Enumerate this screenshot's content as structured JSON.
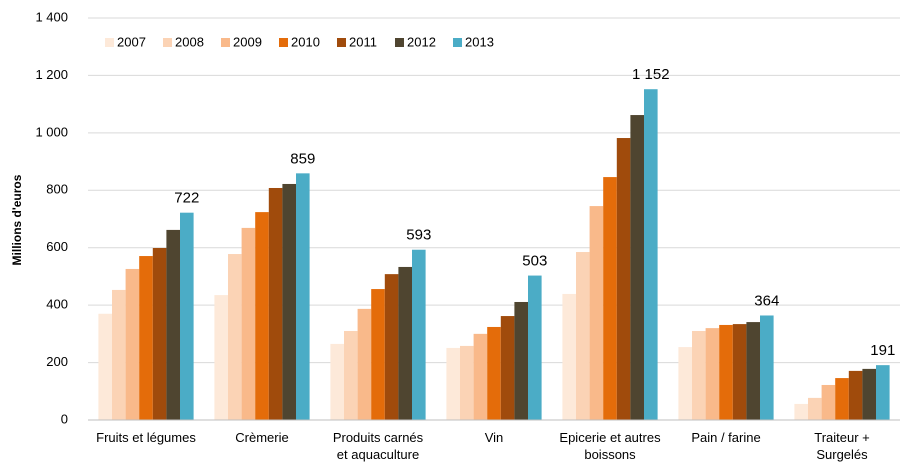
{
  "chart_data": {
    "type": "bar",
    "y_label": "Millions d'euros",
    "categories": [
      "Fruits et légumes",
      "Crèmerie",
      "Produits carnés\net aquaculture",
      "Vin",
      "Epicerie et autres\nboissons",
      "Pain / farine",
      "Traiteur +\nSurgelés"
    ],
    "series": [
      {
        "name": "2007",
        "color": "#fde9d9",
        "values": [
          370,
          435,
          265,
          251,
          439,
          254,
          56
        ]
      },
      {
        "name": "2008",
        "color": "#fbd3b5",
        "values": [
          453,
          578,
          310,
          258,
          585,
          310,
          77
        ]
      },
      {
        "name": "2009",
        "color": "#f9b98a",
        "values": [
          526,
          669,
          387,
          300,
          745,
          320,
          122
        ]
      },
      {
        "name": "2010",
        "color": "#e46c0a",
        "values": [
          571,
          724,
          456,
          324,
          846,
          331,
          146
        ]
      },
      {
        "name": "2011",
        "color": "#a04b0c",
        "values": [
          599,
          808,
          508,
          362,
          982,
          334,
          171
        ]
      },
      {
        "name": "2012",
        "color": "#4f4530",
        "values": [
          662,
          822,
          533,
          411,
          1062,
          341,
          178
        ]
      },
      {
        "name": "2013",
        "color": "#4bacc6",
        "values": [
          722,
          859,
          593,
          503,
          1152,
          364,
          191
        ],
        "value_labels": [
          "722",
          "859",
          "593",
          "503",
          "1 152",
          "364",
          "191"
        ]
      }
    ],
    "ylim": [
      0,
      1400
    ],
    "yticks": [
      0,
      200,
      400,
      600,
      800,
      {
        "value": 1000,
        "label": "1 000"
      },
      {
        "value": 1200,
        "label": "1 200"
      },
      {
        "value": 1400,
        "label": "1 400"
      }
    ],
    "grid": true,
    "legend": "top-left"
  }
}
